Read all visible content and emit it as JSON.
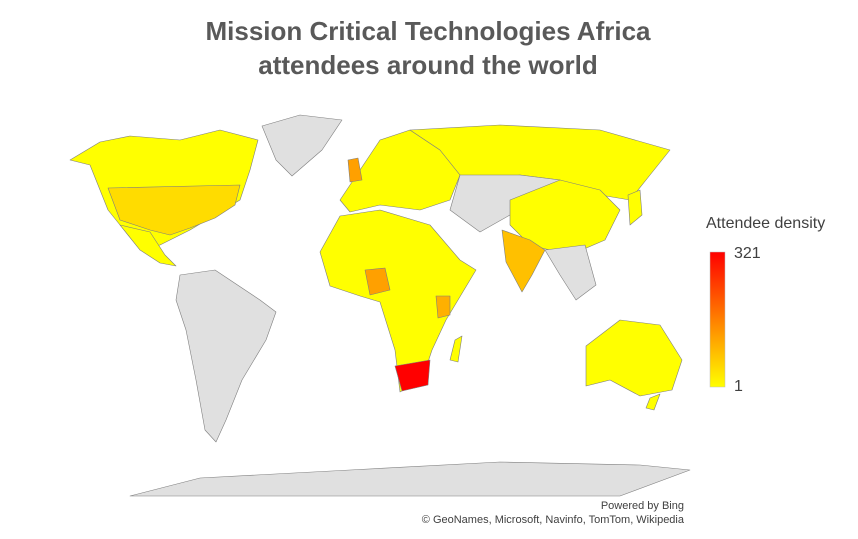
{
  "map": {
    "type": "filled-map",
    "title": [
      "Mission Critical Technologies Africa",
      "attendees around the world"
    ],
    "legend": {
      "title": "Attendee density",
      "min": 1,
      "max": 321,
      "min_color": "#ffff00",
      "max_color": "#ff0000"
    },
    "no_data_color": "#e0e0e0",
    "values": [
      321,
      120,
      80,
      100,
      45,
      120
    ],
    "attribution": [
      "Powered by Bing",
      "© GeoNames, Microsoft, Navinfo, TomTom, Wikipedia"
    ]
  }
}
